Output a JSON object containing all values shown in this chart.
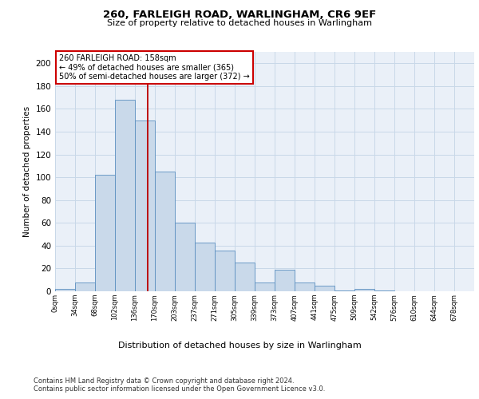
{
  "title1": "260, FARLEIGH ROAD, WARLINGHAM, CR6 9EF",
  "title2": "Size of property relative to detached houses in Warlingham",
  "xlabel": "Distribution of detached houses by size in Warlingham",
  "ylabel": "Number of detached properties",
  "bar_values": [
    2,
    8,
    102,
    168,
    150,
    105,
    60,
    43,
    36,
    25,
    8,
    19,
    8,
    5,
    1,
    2,
    1,
    0,
    0,
    0,
    0
  ],
  "bin_labels": [
    "0sqm",
    "34sqm",
    "68sqm",
    "102sqm",
    "136sqm",
    "170sqm",
    "203sqm",
    "237sqm",
    "271sqm",
    "305sqm",
    "339sqm",
    "373sqm",
    "407sqm",
    "441sqm",
    "475sqm",
    "509sqm",
    "542sqm",
    "576sqm",
    "610sqm",
    "644sqm",
    "678sqm"
  ],
  "bar_color": "#c9d9ea",
  "bar_edge_color": "#5a8fc0",
  "grid_color": "#c8d8e8",
  "background_color": "#eaf0f8",
  "annotation_line1": "260 FARLEIGH ROAD: 158sqm",
  "annotation_line2": "← 49% of detached houses are smaller (365)",
  "annotation_line3": "50% of semi-detached houses are larger (372) →",
  "vline_x": 4.65,
  "vline_color": "#bb0000",
  "box_color": "#cc0000",
  "footnote1": "Contains HM Land Registry data © Crown copyright and database right 2024.",
  "footnote2": "Contains public sector information licensed under the Open Government Licence v3.0.",
  "ylim": [
    0,
    210
  ],
  "yticks": [
    0,
    20,
    40,
    60,
    80,
    100,
    120,
    140,
    160,
    180,
    200
  ]
}
